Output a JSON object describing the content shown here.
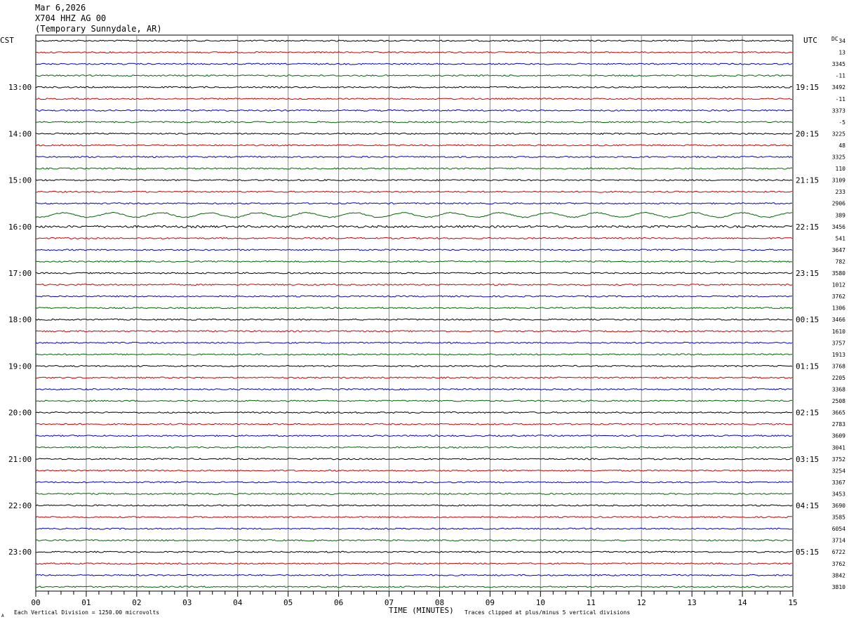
{
  "header": {
    "date": "Mar 6,2026",
    "station": "X704 HHZ AG 00",
    "location": "(Temporary Sunnydale, AR)"
  },
  "labels": {
    "left_tz": "CST",
    "right_tz": "UTC",
    "dc_header": "DC",
    "xlabel": "TIME (MINUTES)",
    "footer_left": "Each Vertical Division = 1250.00 microvolts",
    "footer_right": "Traces clipped at plus/minus 5 vertical divisions",
    "footer_mark": "A"
  },
  "colors": {
    "black": "#000000",
    "red": "#cc0000",
    "blue": "#0000cc",
    "green": "#006600",
    "grid": "#888888"
  },
  "chart_data": {
    "type": "line",
    "title": "X704 HHZ AG 00 (Temporary Sunnydale, AR) Mar 6,2026",
    "xlabel": "TIME (MINUTES)",
    "xlim": [
      0,
      15
    ],
    "x_ticks": [
      "00",
      "01",
      "02",
      "03",
      "04",
      "05",
      "06",
      "07",
      "08",
      "09",
      "10",
      "11",
      "12",
      "13",
      "14",
      "15"
    ],
    "rows_per_hour": 4,
    "row_color_cycle": [
      "black",
      "red",
      "blue",
      "green"
    ],
    "left_hour_labels": [
      "13:00",
      "14:00",
      "15:00",
      "16:00",
      "17:00",
      "18:00",
      "19:00",
      "20:00",
      "21:00",
      "22:00",
      "23:00"
    ],
    "right_hour_labels": [
      "19:15",
      "20:15",
      "21:15",
      "22:15",
      "23:15",
      "00:15",
      "01:15",
      "02:15",
      "03:15",
      "04:15",
      "05:15"
    ],
    "dc_offsets": [
      "34",
      "13",
      "3345",
      "-11",
      "3492",
      "-11",
      "3373",
      "-5",
      "3225",
      "48",
      "3325",
      "110",
      "3109",
      "233",
      "2906",
      "389",
      "3456",
      "541",
      "3647",
      "782",
      "3580",
      "1012",
      "3762",
      "1306",
      "3466",
      "1610",
      "3757",
      "1913",
      "3768",
      "2205",
      "3368",
      "2508",
      "3665",
      "2783",
      "3609",
      "3041",
      "3752",
      "3254",
      "3367",
      "3453",
      "3690",
      "3585",
      "6054",
      "3714",
      "6722",
      "3762",
      "3842",
      "3810"
    ],
    "high_activity_rows": [
      15,
      16
    ],
    "microvolts_per_division": 1250.0,
    "clip_divisions": 5
  }
}
